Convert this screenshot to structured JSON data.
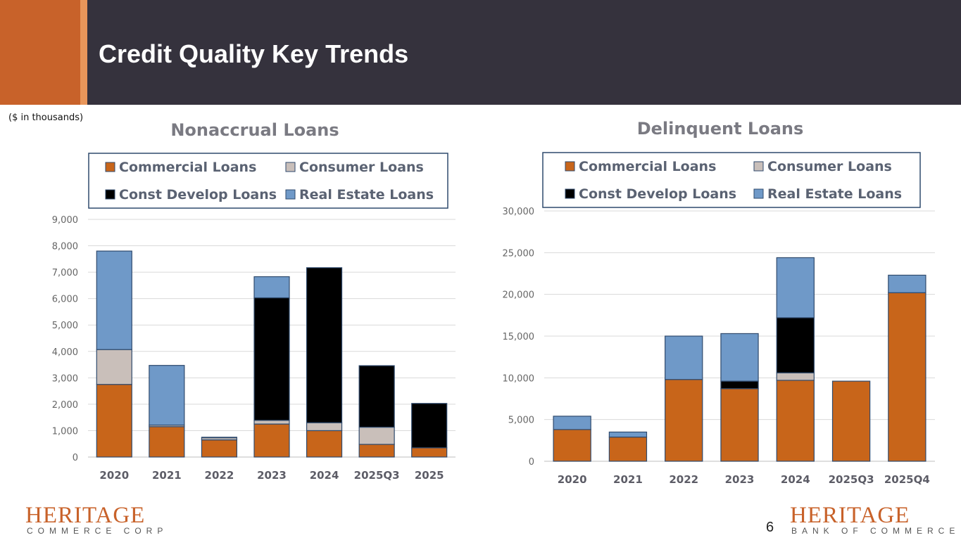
{
  "slide": {
    "title": "Credit Quality Key Trends",
    "units_note": "($ in thousands)",
    "page_number": "6"
  },
  "logos": {
    "left": {
      "main": "HERITAGE",
      "sub": "COMMERCE CORP"
    },
    "right": {
      "main": "HERITAGE",
      "sub": "BANK OF COMMERCE"
    }
  },
  "colors": {
    "commercial": "#c8651a",
    "consumer": "#c9bfba",
    "const_develop": "#000000",
    "real_estate": "#6f99c8",
    "header_bg": "#35323d",
    "accent": "#c8622a"
  },
  "chart_data": [
    {
      "type": "bar",
      "stacked": true,
      "title": "Nonaccrual Loans",
      "categories": [
        "2020",
        "2021",
        "2022",
        "2023",
        "2024",
        "2025Q3",
        "2025"
      ],
      "series": [
        {
          "name": "Commercial Loans",
          "values": [
            2750,
            1150,
            650,
            1250,
            1000,
            480,
            350
          ]
        },
        {
          "name": "Consumer Loans",
          "values": [
            1320,
            60,
            80,
            140,
            300,
            650,
            0
          ]
        },
        {
          "name": "Const Develop Loans",
          "values": [
            0,
            0,
            0,
            4640,
            5870,
            2330,
            1680
          ]
        },
        {
          "name": "Real Estate Loans",
          "values": [
            3730,
            2260,
            20,
            800,
            0,
            0,
            0
          ]
        }
      ],
      "ylim": [
        0,
        9000
      ],
      "yticks": [
        0,
        1000,
        2000,
        3000,
        4000,
        5000,
        6000,
        7000,
        8000,
        9000
      ],
      "ytick_labels": [
        "0",
        "1,000",
        "2,000",
        "3,000",
        "4,000",
        "5,000",
        "6,000",
        "7,000",
        "8,000",
        "9,000"
      ],
      "legend": [
        "Commercial Loans",
        "Consumer Loans",
        "Const Develop Loans",
        "Real Estate Loans"
      ],
      "legend_position": "top",
      "grid": true
    },
    {
      "type": "bar",
      "stacked": true,
      "title": "Delinquent Loans",
      "categories": [
        "2020",
        "2021",
        "2022",
        "2023",
        "2024",
        "2025Q3",
        "2025Q4"
      ],
      "series": [
        {
          "name": "Commercial Loans",
          "values": [
            3800,
            2900,
            9800,
            8700,
            9700,
            9600,
            20200
          ]
        },
        {
          "name": "Consumer Loans",
          "values": [
            0,
            0,
            0,
            0,
            900,
            0,
            0
          ]
        },
        {
          "name": "Const Develop Loans",
          "values": [
            0,
            0,
            0,
            900,
            6600,
            0,
            0
          ]
        },
        {
          "name": "Real Estate Loans",
          "values": [
            1600,
            600,
            5200,
            5700,
            7200,
            0,
            2100
          ]
        }
      ],
      "ylim": [
        0,
        30000
      ],
      "yticks": [
        0,
        5000,
        10000,
        15000,
        20000,
        25000,
        30000
      ],
      "ytick_labels": [
        "0",
        "5,000",
        "10,000",
        "15,000",
        "20,000",
        "25,000",
        "30,000"
      ],
      "legend": [
        "Commercial Loans",
        "Consumer Loans",
        "Const Develop Loans",
        "Real Estate Loans"
      ],
      "legend_position": "top",
      "grid": true
    }
  ]
}
